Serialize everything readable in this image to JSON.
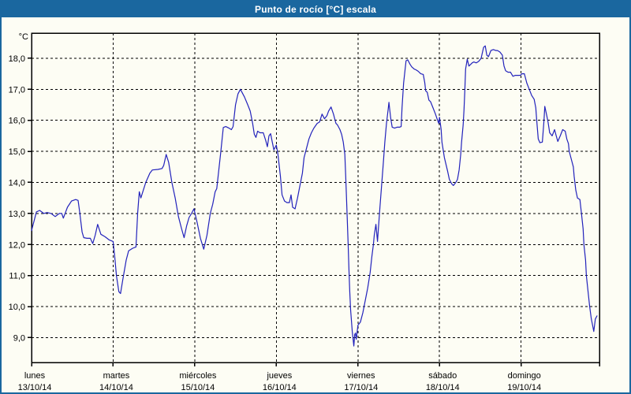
{
  "window": {
    "title": "Punto de rocío [°C] escala"
  },
  "colors": {
    "titlebar": "#1a679f",
    "frame": "#1a679f",
    "background": "#fdfdf4",
    "plot_background": "#fdfdf4",
    "line": "#2222bb",
    "grid": "#000000",
    "axis": "#000000",
    "text": "#000000",
    "title_text": "#ffffff"
  },
  "chart_data": {
    "type": "line",
    "title": "Punto de rocío [°C] escala",
    "series_name": "Punto de rocío",
    "unit": "°C",
    "y_axis_label": "°C",
    "grid": "dashed",
    "legend": "none",
    "ylim": [
      8.2,
      18.81
    ],
    "xlim_days": [
      0,
      6.96
    ],
    "y_ticks": [
      {
        "value": 18,
        "label": "18,0"
      },
      {
        "value": 17,
        "label": "17,0"
      },
      {
        "value": 16,
        "label": "16,0"
      },
      {
        "value": 15,
        "label": "15,0"
      },
      {
        "value": 14,
        "label": "14,0"
      },
      {
        "value": 13,
        "label": "13,0"
      },
      {
        "value": 12,
        "label": "12,0"
      },
      {
        "value": 11,
        "label": "11,0"
      },
      {
        "value": 10,
        "label": "10,0"
      },
      {
        "value": 9,
        "label": "9,0"
      }
    ],
    "x_days": [
      {
        "name": "lunes",
        "date": "13/10/14"
      },
      {
        "name": "martes",
        "date": "14/10/14"
      },
      {
        "name": "miércoles",
        "date": "15/10/14"
      },
      {
        "name": "jueves",
        "date": "16/10/14"
      },
      {
        "name": "viernes",
        "date": "17/10/14"
      },
      {
        "name": "sábado",
        "date": "18/10/14"
      },
      {
        "name": "domingo",
        "date": "19/10/14"
      }
    ],
    "points": [
      [
        0,
        12.45
      ],
      [
        0.03,
        12.75
      ],
      [
        0.06,
        13.05
      ],
      [
        0.1,
        13.1
      ],
      [
        0.15,
        13
      ],
      [
        0.19,
        13.03
      ],
      [
        0.24,
        13
      ],
      [
        0.29,
        12.9
      ],
      [
        0.34,
        13
      ],
      [
        0.37,
        13
      ],
      [
        0.39,
        12.85
      ],
      [
        0.44,
        13.2
      ],
      [
        0.49,
        13.4
      ],
      [
        0.54,
        13.45
      ],
      [
        0.57,
        13.42
      ],
      [
        0.59,
        13.05
      ],
      [
        0.62,
        12.4
      ],
      [
        0.64,
        12.22
      ],
      [
        0.68,
        12.2
      ],
      [
        0.72,
        12.2
      ],
      [
        0.75,
        12.03
      ],
      [
        0.78,
        12.3
      ],
      [
        0.81,
        12.65
      ],
      [
        0.85,
        12.33
      ],
      [
        0.9,
        12.25
      ],
      [
        0.95,
        12.15
      ],
      [
        1,
        12.1
      ],
      [
        1.02,
        11.6
      ],
      [
        1.04,
        11
      ],
      [
        1.07,
        10.48
      ],
      [
        1.09,
        10.42
      ],
      [
        1.12,
        10.9
      ],
      [
        1.16,
        11.5
      ],
      [
        1.19,
        11.8
      ],
      [
        1.24,
        11.88
      ],
      [
        1.28,
        11.92
      ],
      [
        1.3,
        13
      ],
      [
        1.32,
        13.7
      ],
      [
        1.34,
        13.5
      ],
      [
        1.37,
        13.75
      ],
      [
        1.4,
        14
      ],
      [
        1.45,
        14.3
      ],
      [
        1.48,
        14.4
      ],
      [
        1.55,
        14.42
      ],
      [
        1.6,
        14.45
      ],
      [
        1.62,
        14.55
      ],
      [
        1.65,
        14.9
      ],
      [
        1.68,
        14.65
      ],
      [
        1.72,
        14
      ],
      [
        1.76,
        13.5
      ],
      [
        1.8,
        12.9
      ],
      [
        1.84,
        12.5
      ],
      [
        1.87,
        12.22
      ],
      [
        1.9,
        12.6
      ],
      [
        1.93,
        12.87
      ],
      [
        1.96,
        13
      ],
      [
        1.99,
        13.15
      ],
      [
        2.03,
        12.7
      ],
      [
        2.07,
        12.2
      ],
      [
        2.11,
        11.85
      ],
      [
        2.15,
        12.3
      ],
      [
        2.19,
        13
      ],
      [
        2.22,
        13.3
      ],
      [
        2.25,
        13.7
      ],
      [
        2.27,
        13.8
      ],
      [
        2.32,
        15
      ],
      [
        2.35,
        15.77
      ],
      [
        2.38,
        15.8
      ],
      [
        2.42,
        15.75
      ],
      [
        2.45,
        15.7
      ],
      [
        2.47,
        15.8
      ],
      [
        2.5,
        16.5
      ],
      [
        2.53,
        16.85
      ],
      [
        2.56,
        17
      ],
      [
        2.61,
        16.75
      ],
      [
        2.65,
        16.5
      ],
      [
        2.68,
        16.3
      ],
      [
        2.71,
        15.9
      ],
      [
        2.73,
        15.55
      ],
      [
        2.75,
        15.45
      ],
      [
        2.77,
        15.65
      ],
      [
        2.8,
        15.6
      ],
      [
        2.84,
        15.6
      ],
      [
        2.87,
        15.35
      ],
      [
        2.89,
        15.15
      ],
      [
        2.91,
        15.5
      ],
      [
        2.93,
        15.57
      ],
      [
        2.95,
        15.3
      ],
      [
        2.97,
        15.05
      ],
      [
        3,
        15.2
      ],
      [
        3.02,
        14.9
      ],
      [
        3.05,
        14.2
      ],
      [
        3.07,
        13.6
      ],
      [
        3.1,
        13.4
      ],
      [
        3.13,
        13.35
      ],
      [
        3.16,
        13.35
      ],
      [
        3.18,
        13.6
      ],
      [
        3.2,
        13.2
      ],
      [
        3.23,
        13.15
      ],
      [
        3.26,
        13.5
      ],
      [
        3.29,
        13.9
      ],
      [
        3.32,
        14.3
      ],
      [
        3.34,
        14.8
      ],
      [
        3.37,
        15.1
      ],
      [
        3.4,
        15.4
      ],
      [
        3.43,
        15.6
      ],
      [
        3.46,
        15.75
      ],
      [
        3.5,
        15.9
      ],
      [
        3.53,
        15.95
      ],
      [
        3.56,
        16.2
      ],
      [
        3.59,
        16.05
      ],
      [
        3.62,
        16.15
      ],
      [
        3.64,
        16.3
      ],
      [
        3.67,
        16.43
      ],
      [
        3.7,
        16.2
      ],
      [
        3.73,
        15.9
      ],
      [
        3.75,
        15.85
      ],
      [
        3.78,
        15.7
      ],
      [
        3.8,
        15.55
      ],
      [
        3.82,
        15.3
      ],
      [
        3.84,
        14.9
      ],
      [
        3.85,
        14.2
      ],
      [
        3.86,
        13.5
      ],
      [
        3.87,
        12.8
      ],
      [
        3.88,
        12
      ],
      [
        3.89,
        11.2
      ],
      [
        3.9,
        10.5
      ],
      [
        3.91,
        9.9
      ],
      [
        3.93,
        9.2
      ],
      [
        3.95,
        8.73
      ],
      [
        3.96,
        9.1
      ],
      [
        3.97,
        9.15
      ],
      [
        3.98,
        8.95
      ],
      [
        4,
        9.4
      ],
      [
        4.03,
        9.5
      ],
      [
        4.06,
        9.8
      ],
      [
        4.09,
        10.2
      ],
      [
        4.12,
        10.6
      ],
      [
        4.15,
        11.1
      ],
      [
        4.17,
        11.6
      ],
      [
        4.19,
        12
      ],
      [
        4.2,
        12.3
      ],
      [
        4.22,
        12.65
      ],
      [
        4.24,
        12.1
      ],
      [
        4.25,
        12.5
      ],
      [
        4.27,
        13.2
      ],
      [
        4.29,
        13.9
      ],
      [
        4.31,
        14.6
      ],
      [
        4.33,
        15.3
      ],
      [
        4.35,
        15.9
      ],
      [
        4.37,
        16.35
      ],
      [
        4.38,
        16.58
      ],
      [
        4.4,
        16.1
      ],
      [
        4.42,
        15.78
      ],
      [
        4.45,
        15.75
      ],
      [
        4.48,
        15.78
      ],
      [
        4.51,
        15.78
      ],
      [
        4.53,
        15.8
      ],
      [
        4.54,
        16.4
      ],
      [
        4.56,
        17.2
      ],
      [
        4.59,
        17.92
      ],
      [
        4.61,
        17.95
      ],
      [
        4.64,
        17.8
      ],
      [
        4.66,
        17.72
      ],
      [
        4.69,
        17.65
      ],
      [
        4.71,
        17.63
      ],
      [
        4.74,
        17.58
      ],
      [
        4.77,
        17.5
      ],
      [
        4.8,
        17.48
      ],
      [
        4.82,
        17.2
      ],
      [
        4.83,
        16.95
      ],
      [
        4.85,
        16.9
      ],
      [
        4.87,
        16.65
      ],
      [
        4.89,
        16.6
      ],
      [
        4.92,
        16.4
      ],
      [
        4.95,
        16.2
      ],
      [
        4.97,
        16.05
      ],
      [
        4.99,
        15.9
      ],
      [
        5,
        16.1
      ],
      [
        5.02,
        15.7
      ],
      [
        5.03,
        15.3
      ],
      [
        5.06,
        14.8
      ],
      [
        5.1,
        14.35
      ],
      [
        5.12,
        14.1
      ],
      [
        5.15,
        13.95
      ],
      [
        5.17,
        13.9
      ],
      [
        5.2,
        14
      ],
      [
        5.22,
        14.1
      ],
      [
        5.24,
        14.4
      ],
      [
        5.26,
        14.9
      ],
      [
        5.27,
        15.3
      ],
      [
        5.29,
        15.85
      ],
      [
        5.3,
        16.35
      ],
      [
        5.31,
        16.95
      ],
      [
        5.32,
        17.65
      ],
      [
        5.34,
        17.97
      ],
      [
        5.36,
        17.75
      ],
      [
        5.38,
        17.8
      ],
      [
        5.4,
        17.85
      ],
      [
        5.42,
        17.88
      ],
      [
        5.45,
        17.85
      ],
      [
        5.48,
        17.9
      ],
      [
        5.51,
        18
      ],
      [
        5.54,
        18.35
      ],
      [
        5.56,
        18.4
      ],
      [
        5.58,
        18.1
      ],
      [
        5.6,
        18.05
      ],
      [
        5.63,
        18.25
      ],
      [
        5.66,
        18.28
      ],
      [
        5.69,
        18.25
      ],
      [
        5.71,
        18.25
      ],
      [
        5.74,
        18.2
      ],
      [
        5.77,
        18.1
      ],
      [
        5.79,
        17.75
      ],
      [
        5.81,
        17.6
      ],
      [
        5.84,
        17.55
      ],
      [
        5.87,
        17.55
      ],
      [
        5.9,
        17.42
      ],
      [
        5.93,
        17.45
      ],
      [
        5.96,
        17.45
      ],
      [
        5.99,
        17.45
      ],
      [
        6.01,
        17.5
      ],
      [
        6.04,
        17.5
      ],
      [
        6.07,
        17.2
      ],
      [
        6.1,
        17
      ],
      [
        6.13,
        16.8
      ],
      [
        6.16,
        16.68
      ],
      [
        6.18,
        16.4
      ],
      [
        6.19,
        16.05
      ],
      [
        6.21,
        15.4
      ],
      [
        6.23,
        15.28
      ],
      [
        6.26,
        15.3
      ],
      [
        6.28,
        16
      ],
      [
        6.29,
        16.45
      ],
      [
        6.31,
        16.2
      ],
      [
        6.33,
        15.95
      ],
      [
        6.35,
        15.6
      ],
      [
        6.38,
        15.5
      ],
      [
        6.41,
        15.7
      ],
      [
        6.43,
        15.5
      ],
      [
        6.45,
        15.32
      ],
      [
        6.48,
        15.5
      ],
      [
        6.51,
        15.7
      ],
      [
        6.54,
        15.65
      ],
      [
        6.56,
        15.4
      ],
      [
        6.58,
        15.25
      ],
      [
        6.59,
        15
      ],
      [
        6.62,
        14.7
      ],
      [
        6.64,
        14.5
      ],
      [
        6.65,
        14.2
      ],
      [
        6.67,
        13.75
      ],
      [
        6.69,
        13.5
      ],
      [
        6.72,
        13.45
      ],
      [
        6.74,
        13
      ],
      [
        6.76,
        12.5
      ],
      [
        6.77,
        12
      ],
      [
        6.79,
        11.5
      ],
      [
        6.8,
        11
      ],
      [
        6.82,
        10.5
      ],
      [
        6.84,
        10
      ],
      [
        6.86,
        9.6
      ],
      [
        6.88,
        9.35
      ],
      [
        6.89,
        9.2
      ],
      [
        6.91,
        9.6
      ],
      [
        6.93,
        9.7
      ]
    ]
  }
}
